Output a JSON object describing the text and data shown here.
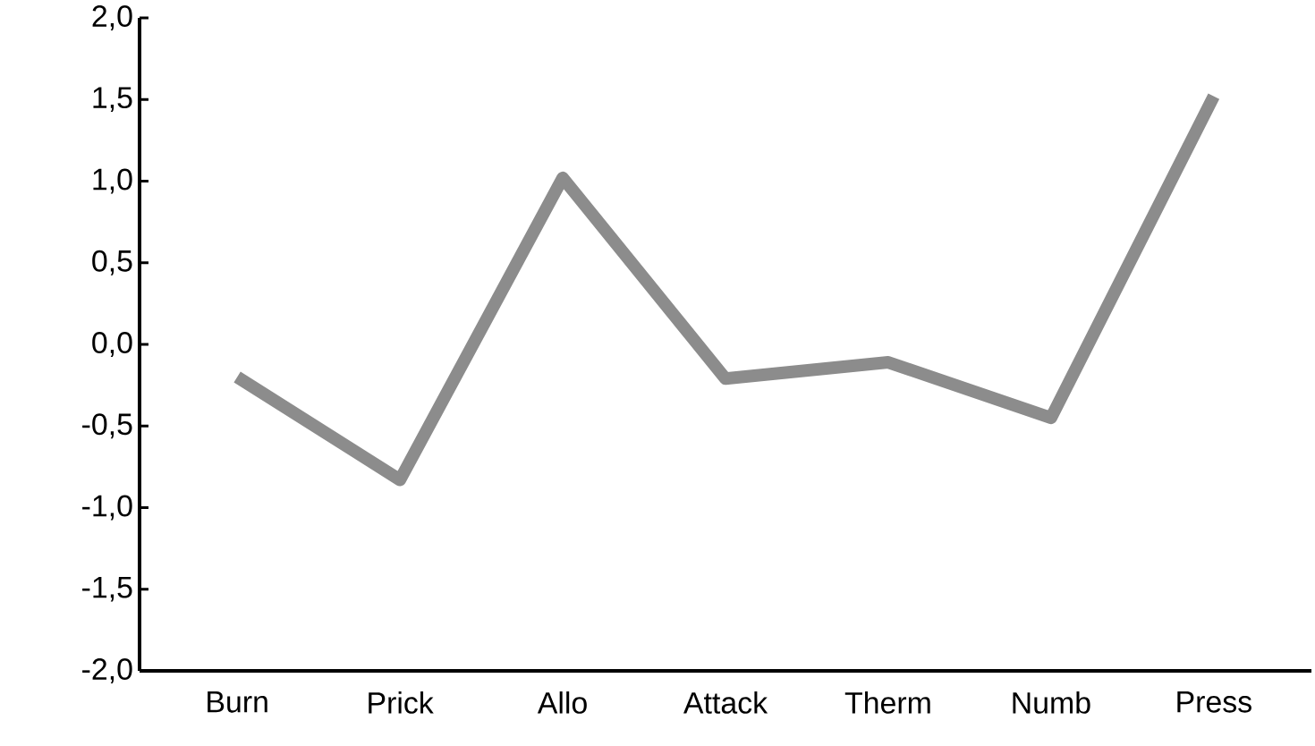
{
  "chart_data": {
    "type": "line",
    "categories": [
      "Burn",
      "Prick",
      "Allo",
      "Attack",
      "Therm",
      "Numb",
      "Press"
    ],
    "values": [
      -0.2,
      -0.83,
      1.02,
      -0.21,
      -0.11,
      -0.45,
      1.52
    ],
    "color": "#8c8c8c",
    "marker": "none",
    "line_style": "solid",
    "ylim": [
      -2,
      2
    ],
    "yticks": [
      {
        "value": -2,
        "label": "-2,0"
      },
      {
        "value": -1.5,
        "label": "-1,5"
      },
      {
        "value": -1,
        "label": "-1,0"
      },
      {
        "value": -0.5,
        "label": "-0,5"
      },
      {
        "value": 0,
        "label": "0,0"
      },
      {
        "value": 0.5,
        "label": "0,5"
      },
      {
        "value": 1,
        "label": "1,0"
      },
      {
        "value": 1.5,
        "label": "1,5"
      },
      {
        "value": 2,
        "label": "2,0"
      }
    ]
  }
}
